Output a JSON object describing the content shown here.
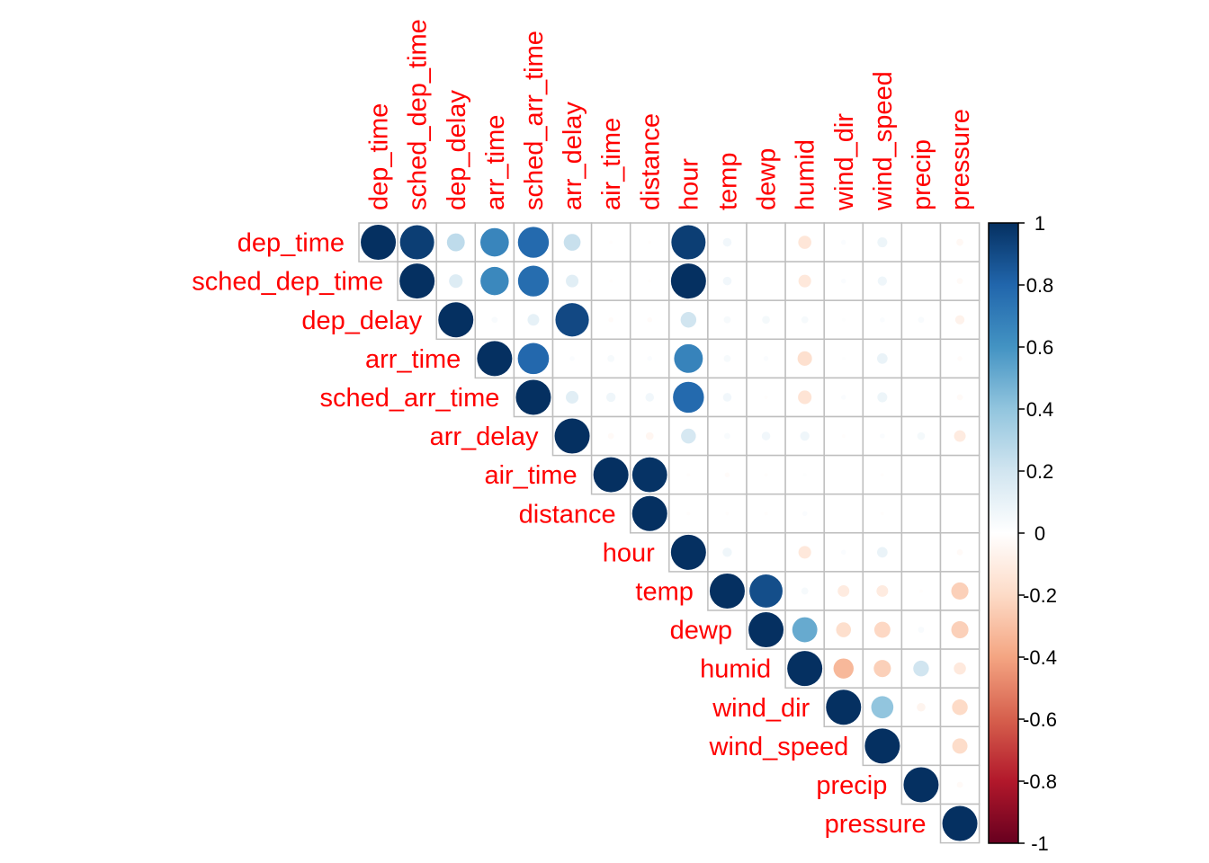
{
  "chart_data": {
    "type": "heatmap",
    "variables": [
      "dep_time",
      "sched_dep_time",
      "dep_delay",
      "arr_time",
      "sched_arr_time",
      "arr_delay",
      "air_time",
      "distance",
      "hour",
      "temp",
      "dewp",
      "humid",
      "wind_dir",
      "wind_speed",
      "precip",
      "pressure"
    ],
    "matrix": [
      [
        1.0,
        0.95,
        0.26,
        0.66,
        0.78,
        0.23,
        -0.01,
        -0.01,
        0.95,
        0.06,
        0.0,
        -0.14,
        0.02,
        0.08,
        0.0,
        -0.04
      ],
      [
        null,
        1.0,
        0.15,
        0.65,
        0.77,
        0.13,
        -0.01,
        -0.01,
        1.0,
        0.06,
        0.0,
        -0.13,
        0.02,
        0.07,
        0.0,
        -0.03
      ],
      [
        null,
        null,
        1.0,
        0.03,
        0.11,
        0.91,
        -0.02,
        -0.02,
        0.2,
        0.04,
        0.05,
        0.04,
        0.01,
        0.02,
        0.03,
        -0.07
      ],
      [
        null,
        null,
        null,
        1.0,
        0.79,
        0.02,
        0.04,
        0.02,
        0.67,
        0.04,
        0.02,
        -0.17,
        0.01,
        0.09,
        0.0,
        -0.02
      ],
      [
        null,
        null,
        null,
        null,
        1.0,
        0.13,
        0.07,
        0.06,
        0.78,
        0.06,
        -0.01,
        -0.15,
        0.02,
        0.08,
        0.0,
        -0.03
      ],
      [
        null,
        null,
        null,
        null,
        null,
        1.0,
        -0.03,
        -0.05,
        0.18,
        0.03,
        0.06,
        0.07,
        -0.01,
        0.02,
        0.05,
        -0.11
      ],
      [
        null,
        null,
        null,
        null,
        null,
        null,
        1.0,
        0.99,
        -0.01,
        -0.02,
        -0.01,
        0.01,
        0.0,
        -0.01,
        0.0,
        0.0
      ],
      [
        null,
        null,
        null,
        null,
        null,
        null,
        null,
        1.0,
        -0.01,
        -0.01,
        -0.01,
        0.02,
        0.0,
        -0.01,
        0.0,
        0.0
      ],
      [
        null,
        null,
        null,
        null,
        null,
        null,
        null,
        null,
        1.0,
        0.07,
        0.0,
        -0.13,
        0.02,
        0.09,
        0.0,
        -0.03
      ],
      [
        null,
        null,
        null,
        null,
        null,
        null,
        null,
        null,
        null,
        1.0,
        0.89,
        0.04,
        -0.11,
        -0.11,
        -0.01,
        -0.24
      ],
      [
        null,
        null,
        null,
        null,
        null,
        null,
        null,
        null,
        null,
        null,
        1.0,
        0.51,
        -0.18,
        -0.21,
        0.03,
        -0.24
      ],
      [
        null,
        null,
        null,
        null,
        null,
        null,
        null,
        null,
        null,
        null,
        null,
        1.0,
        -0.33,
        -0.24,
        0.2,
        -0.12
      ],
      [
        null,
        null,
        null,
        null,
        null,
        null,
        null,
        null,
        null,
        null,
        null,
        null,
        1.0,
        0.4,
        -0.06,
        -0.2
      ],
      [
        null,
        null,
        null,
        null,
        null,
        null,
        null,
        null,
        null,
        null,
        null,
        null,
        null,
        1.0,
        0.0,
        -0.19
      ],
      [
        null,
        null,
        null,
        null,
        null,
        null,
        null,
        null,
        null,
        null,
        null,
        null,
        null,
        null,
        1.0,
        -0.03
      ],
      [
        null,
        null,
        null,
        null,
        null,
        null,
        null,
        null,
        null,
        null,
        null,
        null,
        null,
        null,
        null,
        1.0
      ]
    ],
    "colorbar": {
      "ticks": [
        "1",
        "0.8",
        "0.6",
        "0.4",
        "0.2",
        "0",
        "-0.2",
        "-0.4",
        "-0.6",
        "-0.8",
        "-1"
      ],
      "range": [
        -1,
        1
      ]
    },
    "colors": {
      "label": "#ff0000",
      "grid": "#bebebe",
      "palette": [
        "#67001f",
        "#b2182b",
        "#d6604d",
        "#f4a582",
        "#fddbc7",
        "#ffffff",
        "#d1e5f0",
        "#92c5de",
        "#4393c3",
        "#2166ac",
        "#053061"
      ]
    }
  }
}
